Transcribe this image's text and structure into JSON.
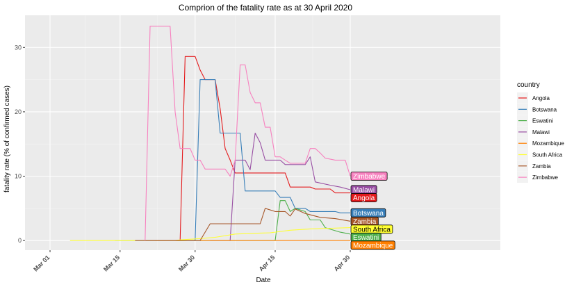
{
  "chart_data": {
    "type": "line",
    "title": "Comprion of the fatality rate as at 30 April 2020",
    "xlabel": "Date",
    "ylabel": "fatality rate (% of confirmed cases)",
    "x_range": [
      "2020-02-25",
      "2020-05-30"
    ],
    "ylim": [
      -1.5,
      35
    ],
    "x_ticks": [
      {
        "label": "Mar 01",
        "date": "2020-03-01"
      },
      {
        "label": "Mar 15",
        "date": "2020-03-15"
      },
      {
        "label": "Mar 30",
        "date": "2020-03-30"
      },
      {
        "label": "Apr 15",
        "date": "2020-04-15"
      },
      {
        "label": "Apr 30",
        "date": "2020-04-30"
      }
    ],
    "y_ticks": [
      0,
      10,
      20,
      30
    ],
    "grid": true,
    "legend": {
      "title": "country",
      "position": "right"
    },
    "series": [
      {
        "name": "Angola",
        "color": "#E41A1C",
        "end_label": "Angola",
        "points": [
          [
            "2020-03-20",
            0
          ],
          [
            "2020-03-27",
            0
          ],
          [
            "2020-03-28",
            28.6
          ],
          [
            "2020-03-30",
            28.6
          ],
          [
            "2020-03-31",
            26.5
          ],
          [
            "2020-04-01",
            25
          ],
          [
            "2020-04-03",
            25
          ],
          [
            "2020-04-04",
            20.5
          ],
          [
            "2020-04-05",
            14.3
          ],
          [
            "2020-04-06",
            12.5
          ],
          [
            "2020-04-07",
            10.5
          ],
          [
            "2020-04-16",
            10.5
          ],
          [
            "2020-04-17",
            10.5
          ],
          [
            "2020-04-18",
            8.3
          ],
          [
            "2020-04-22",
            8.3
          ],
          [
            "2020-04-23",
            8
          ],
          [
            "2020-04-26",
            8
          ],
          [
            "2020-04-27",
            7.4
          ],
          [
            "2020-04-30",
            7.4
          ]
        ]
      },
      {
        "name": "Botswana",
        "color": "#377EB8",
        "end_label": "Botswana",
        "points": [
          [
            "2020-03-27",
            0
          ],
          [
            "2020-03-30",
            0
          ],
          [
            "2020-03-31",
            25
          ],
          [
            "2020-04-03",
            25
          ],
          [
            "2020-04-04",
            16.7
          ],
          [
            "2020-04-06",
            16.7
          ],
          [
            "2020-04-07",
            16.7
          ],
          [
            "2020-04-08",
            16.7
          ],
          [
            "2020-04-09",
            7.7
          ],
          [
            "2020-04-14",
            7.7
          ],
          [
            "2020-04-15",
            7.7
          ],
          [
            "2020-04-16",
            6.7
          ],
          [
            "2020-04-18",
            6.7
          ],
          [
            "2020-04-19",
            5
          ],
          [
            "2020-04-21",
            5
          ],
          [
            "2020-04-22",
            4.5
          ],
          [
            "2020-04-27",
            4.5
          ],
          [
            "2020-04-28",
            4.3
          ],
          [
            "2020-04-30",
            4.3
          ]
        ]
      },
      {
        "name": "Eswatini",
        "color": "#4DAF4A",
        "end_label": "Eswatini",
        "points": [
          [
            "2020-03-14",
            0
          ],
          [
            "2020-04-15",
            0
          ],
          [
            "2020-04-16",
            6.2
          ],
          [
            "2020-04-17",
            6.2
          ],
          [
            "2020-04-18",
            4.5
          ],
          [
            "2020-04-19",
            5
          ],
          [
            "2020-04-21",
            4.5
          ],
          [
            "2020-04-22",
            3.2
          ],
          [
            "2020-04-24",
            3.2
          ],
          [
            "2020-04-25",
            2
          ],
          [
            "2020-04-28",
            1.3
          ],
          [
            "2020-04-30",
            1
          ]
        ]
      },
      {
        "name": "Malawi",
        "color": "#984EA3",
        "end_label": "Malawi",
        "points": [
          [
            "2020-04-02",
            0
          ],
          [
            "2020-04-06",
            0
          ],
          [
            "2020-04-07",
            12.5
          ],
          [
            "2020-04-09",
            12.5
          ],
          [
            "2020-04-10",
            11
          ],
          [
            "2020-04-11",
            16.7
          ],
          [
            "2020-04-12",
            15.2
          ],
          [
            "2020-04-13",
            12.5
          ],
          [
            "2020-04-16",
            12.5
          ],
          [
            "2020-04-17",
            11.8
          ],
          [
            "2020-04-21",
            11.8
          ],
          [
            "2020-04-22",
            13
          ],
          [
            "2020-04-23",
            9.1
          ],
          [
            "2020-04-26",
            8.6
          ],
          [
            "2020-04-28",
            8.3
          ],
          [
            "2020-04-30",
            7.9
          ]
        ]
      },
      {
        "name": "Mozambique",
        "color": "#FF7F00",
        "end_label": "Mozambique",
        "points": [
          [
            "2020-03-22",
            0
          ],
          [
            "2020-04-30",
            0
          ]
        ]
      },
      {
        "name": "South Africa",
        "color": "#FFFF33",
        "end_label": "South Africa",
        "points": [
          [
            "2020-03-05",
            0
          ],
          [
            "2020-03-26",
            0
          ],
          [
            "2020-03-27",
            0.1
          ],
          [
            "2020-03-31",
            0.3
          ],
          [
            "2020-04-03",
            0.5
          ],
          [
            "2020-04-07",
            1
          ],
          [
            "2020-04-10",
            1.1
          ],
          [
            "2020-04-14",
            1.2
          ],
          [
            "2020-04-18",
            1.6
          ],
          [
            "2020-04-22",
            1.8
          ],
          [
            "2020-04-26",
            1.9
          ],
          [
            "2020-04-30",
            2
          ]
        ]
      },
      {
        "name": "Zambia",
        "color": "#A65628",
        "end_label": "Zambia",
        "points": [
          [
            "2020-03-18",
            0
          ],
          [
            "2020-03-31",
            0
          ],
          [
            "2020-04-02",
            2.6
          ],
          [
            "2020-04-09",
            2.6
          ],
          [
            "2020-04-12",
            2.6
          ],
          [
            "2020-04-13",
            5
          ],
          [
            "2020-04-15",
            4.5
          ],
          [
            "2020-04-17",
            4.5
          ],
          [
            "2020-04-18",
            3.8
          ],
          [
            "2020-04-19",
            4.9
          ],
          [
            "2020-04-21",
            4.2
          ],
          [
            "2020-04-24",
            3.6
          ],
          [
            "2020-04-27",
            3.4
          ],
          [
            "2020-04-30",
            3
          ]
        ]
      },
      {
        "name": "Zimbabwe",
        "color": "#F781BF",
        "end_label": "Zimbabwe",
        "points": [
          [
            "2020-03-20",
            0
          ],
          [
            "2020-03-21",
            33.3
          ],
          [
            "2020-03-25",
            33.3
          ],
          [
            "2020-03-26",
            20
          ],
          [
            "2020-03-27",
            14.3
          ],
          [
            "2020-03-29",
            14.3
          ],
          [
            "2020-03-30",
            12.5
          ],
          [
            "2020-03-31",
            12.5
          ],
          [
            "2020-04-01",
            11.1
          ],
          [
            "2020-04-05",
            11.1
          ],
          [
            "2020-04-06",
            10
          ],
          [
            "2020-04-07",
            12.5
          ],
          [
            "2020-04-08",
            27.3
          ],
          [
            "2020-04-09",
            27.3
          ],
          [
            "2020-04-10",
            23
          ],
          [
            "2020-04-11",
            21.4
          ],
          [
            "2020-04-12",
            21.4
          ],
          [
            "2020-04-13",
            17.6
          ],
          [
            "2020-04-14",
            17.6
          ],
          [
            "2020-04-15",
            13
          ],
          [
            "2020-04-16",
            13
          ],
          [
            "2020-04-17",
            12.5
          ],
          [
            "2020-04-18",
            12
          ],
          [
            "2020-04-21",
            12
          ],
          [
            "2020-04-22",
            14.3
          ],
          [
            "2020-04-23",
            14.3
          ],
          [
            "2020-04-24",
            13.6
          ],
          [
            "2020-04-25",
            12.8
          ],
          [
            "2020-04-27",
            12.5
          ],
          [
            "2020-04-29",
            12.5
          ],
          [
            "2020-04-30",
            10
          ]
        ]
      }
    ]
  }
}
